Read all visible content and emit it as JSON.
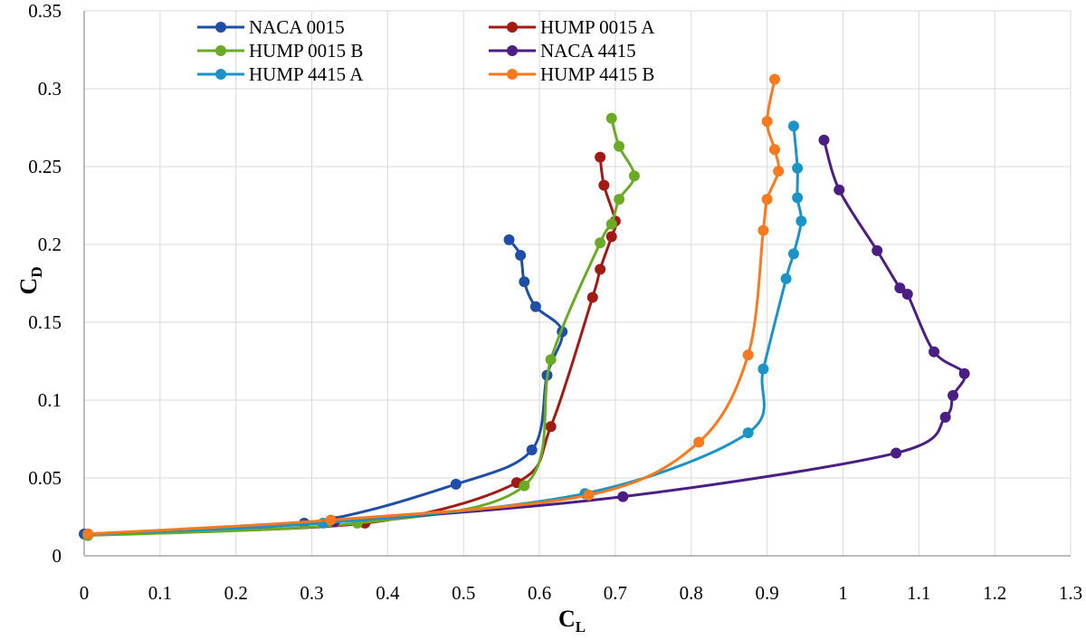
{
  "chart_data": {
    "type": "line",
    "xlabel": "C",
    "xlabel_subscript": "L",
    "ylabel": "C",
    "ylabel_subscript": "D",
    "xlim": [
      0,
      1.3
    ],
    "ylim": [
      0,
      0.35
    ],
    "xticks": [
      "0",
      "0.1",
      "0.2",
      "0.3",
      "0.4",
      "0.5",
      "0.6",
      "0.7",
      "0.8",
      "0.9",
      "1",
      "1.1",
      "1.2",
      "1.3"
    ],
    "yticks": [
      "0",
      "0.05",
      "0.1",
      "0.15",
      "0.2",
      "0.25",
      "0.3",
      "0.35"
    ],
    "grid": true,
    "legend_position": "top-left",
    "series": [
      {
        "name": "NACA 0015",
        "color": "#1f4ea8",
        "points": [
          [
            0.0,
            0.014
          ],
          [
            0.29,
            0.021
          ],
          [
            0.49,
            0.046
          ],
          [
            0.59,
            0.068
          ],
          [
            0.61,
            0.116
          ],
          [
            0.63,
            0.144
          ],
          [
            0.595,
            0.16
          ],
          [
            0.58,
            0.176
          ],
          [
            0.575,
            0.193
          ],
          [
            0.56,
            0.203
          ]
        ]
      },
      {
        "name": "HUMP 0015 A",
        "color": "#a31a14",
        "points": [
          [
            0.005,
            0.014
          ],
          [
            0.37,
            0.021
          ],
          [
            0.57,
            0.047
          ],
          [
            0.615,
            0.083
          ],
          [
            0.67,
            0.166
          ],
          [
            0.68,
            0.184
          ],
          [
            0.695,
            0.205
          ],
          [
            0.7,
            0.215
          ],
          [
            0.685,
            0.238
          ],
          [
            0.68,
            0.256
          ]
        ]
      },
      {
        "name": "HUMP 0015 B",
        "color": "#6aaa25",
        "points": [
          [
            0.005,
            0.013
          ],
          [
            0.36,
            0.021
          ],
          [
            0.58,
            0.045
          ],
          [
            0.615,
            0.126
          ],
          [
            0.68,
            0.201
          ],
          [
            0.695,
            0.213
          ],
          [
            0.705,
            0.229
          ],
          [
            0.725,
            0.244
          ],
          [
            0.705,
            0.263
          ],
          [
            0.695,
            0.281
          ]
        ]
      },
      {
        "name": "NACA 4415",
        "color": "#4b1e84",
        "points": [
          [
            0.005,
            0.014
          ],
          [
            0.33,
            0.022
          ],
          [
            0.71,
            0.038
          ],
          [
            1.07,
            0.066
          ],
          [
            1.135,
            0.089
          ],
          [
            1.145,
            0.103
          ],
          [
            1.16,
            0.117
          ],
          [
            1.12,
            0.131
          ],
          [
            1.085,
            0.168
          ],
          [
            1.075,
            0.172
          ],
          [
            1.045,
            0.196
          ],
          [
            0.995,
            0.235
          ],
          [
            0.975,
            0.267
          ]
        ]
      },
      {
        "name": "HUMP 4415 A",
        "color": "#1a93c7",
        "points": [
          [
            0.005,
            0.014
          ],
          [
            0.315,
            0.021
          ],
          [
            0.66,
            0.04
          ],
          [
            0.875,
            0.079
          ],
          [
            0.895,
            0.12
          ],
          [
            0.925,
            0.178
          ],
          [
            0.935,
            0.194
          ],
          [
            0.945,
            0.215
          ],
          [
            0.94,
            0.23
          ],
          [
            0.94,
            0.249
          ],
          [
            0.935,
            0.276
          ]
        ]
      },
      {
        "name": "HUMP 4415 B",
        "color": "#f97a1e",
        "points": [
          [
            0.005,
            0.014
          ],
          [
            0.325,
            0.023
          ],
          [
            0.665,
            0.039
          ],
          [
            0.81,
            0.073
          ],
          [
            0.875,
            0.129
          ],
          [
            0.895,
            0.209
          ],
          [
            0.9,
            0.229
          ],
          [
            0.915,
            0.247
          ],
          [
            0.91,
            0.261
          ],
          [
            0.9,
            0.279
          ],
          [
            0.91,
            0.306
          ]
        ]
      }
    ]
  }
}
